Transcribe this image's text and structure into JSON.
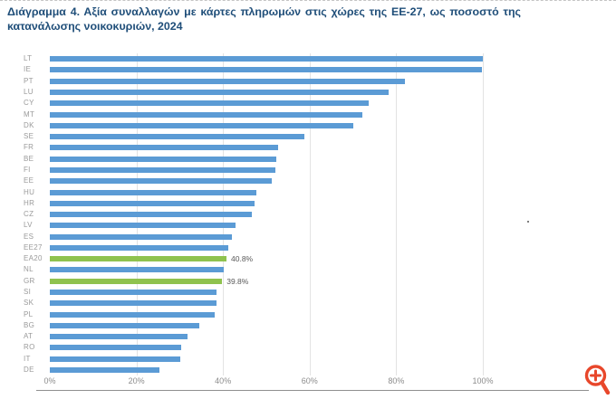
{
  "page": {
    "title_line1": "Διάγραμμα 4. Αξία συναλλαγών με κάρτες πληρωμών στις χώρες της ΕΕ-27, ως ποσοστό της",
    "title_line2": "κατανάλωσης νοικοκυριών, 2024"
  },
  "chart_data": {
    "type": "bar",
    "orientation": "horizontal",
    "title": "Διάγραμμα 4. Αξία συναλλαγών με κάρτες πληρωμών στις χώρες της ΕΕ-27, ως ποσοστό της κατανάλωσης νοικοκυριών, 2024",
    "categories": [
      "LT",
      "IE",
      "PT",
      "LU",
      "CY",
      "MT",
      "DK",
      "SE",
      "FR",
      "BE",
      "FI",
      "EE",
      "HU",
      "HR",
      "CZ",
      "LV",
      "ES",
      "EE27",
      "EA20",
      "NL",
      "GR",
      "SI",
      "SK",
      "PL",
      "BG",
      "AT",
      "RO",
      "IT",
      "DE"
    ],
    "values": [
      100.0,
      99.8,
      82.0,
      78.3,
      73.6,
      72.1,
      70.1,
      58.8,
      52.8,
      52.4,
      52.1,
      51.2,
      47.6,
      47.2,
      46.7,
      42.9,
      42.0,
      41.3,
      40.8,
      40.1,
      39.8,
      38.5,
      38.4,
      38.1,
      34.5,
      31.8,
      30.3,
      30.2,
      25.3
    ],
    "highlighted": [
      "EA20",
      "GR"
    ],
    "data_labels": {
      "EA20": "40.8%",
      "GR": "39.8%"
    },
    "x_ticks": [
      "0%",
      "20%",
      "40%",
      "60%",
      "80%",
      "100%"
    ],
    "xlim": [
      0,
      124
    ],
    "grid": true,
    "legend": "none",
    "bar_color": "#5B9BD5",
    "highlight_color": "#8FC24E"
  },
  "colors": {
    "title": "#1F4E79",
    "category_label": "#9a9a9a",
    "tick_label": "#8c8c8c",
    "gridline": "#e3e3e3",
    "axis_line": "#8f8f8f",
    "data_label": "#595959",
    "zoom_icon": "#E8472B"
  },
  "icons": {
    "zoom_in": "zoom-in-icon"
  }
}
